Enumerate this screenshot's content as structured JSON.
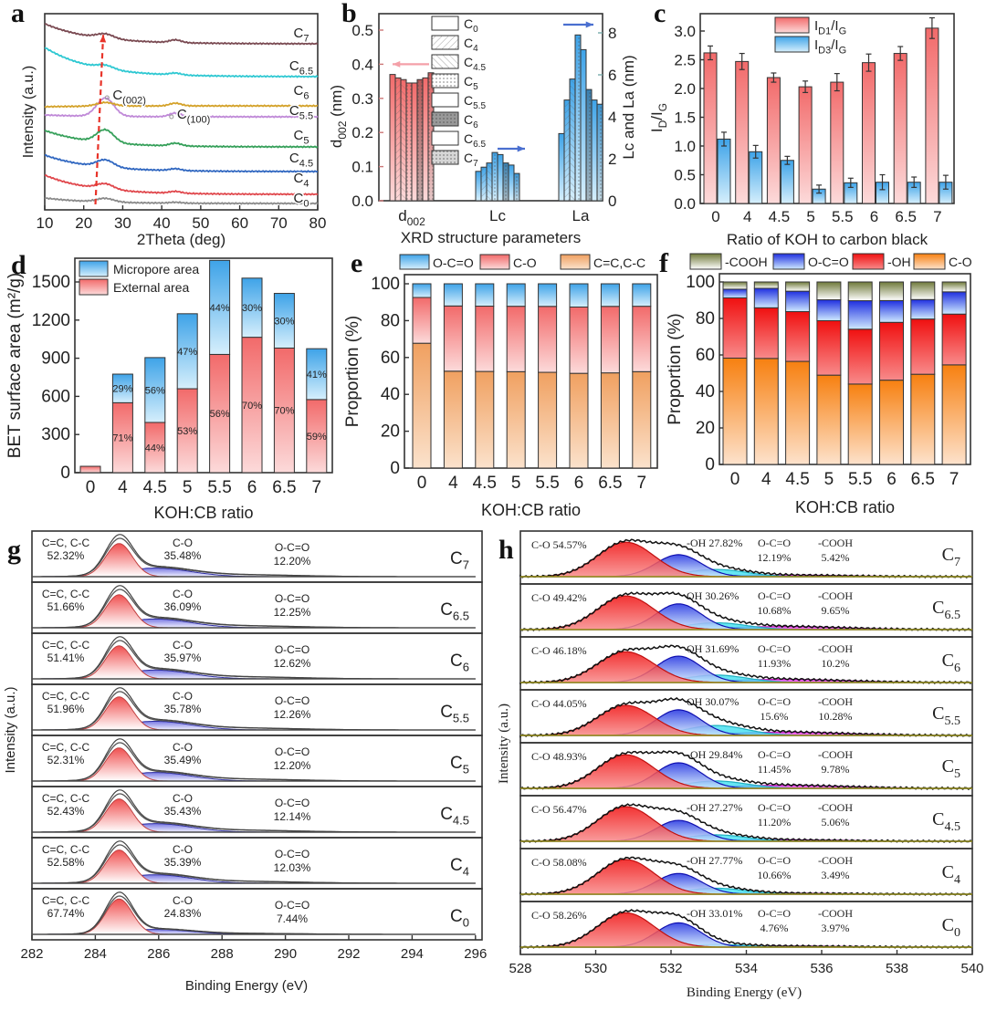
{
  "panel_labels": [
    "a",
    "b",
    "c",
    "d",
    "e",
    "f",
    "g",
    "h"
  ],
  "colors": {
    "red_bar": "#f26a6a",
    "blue_bar": "#3ea3e8",
    "orange_bar": "#f0a060",
    "cooh": "#707a3a",
    "oco_f": "#1f2fe0",
    "oh": "#f01010",
    "co_f": "#f78010",
    "arrow_red": "#e8342a",
    "arrow_blue": "#4a6fd0",
    "arrow_pink": "#f4a0a8"
  },
  "chart_data": [
    {
      "panel": "a",
      "type": "line",
      "xlabel": "2Theta (deg)",
      "ylabel": "Intensity (a.u.)",
      "xlim": [
        10,
        80
      ],
      "xticks": [
        10,
        20,
        30,
        40,
        50,
        60,
        70,
        80
      ],
      "series": [
        {
          "name": "C_{0}",
          "color": "#8a8a8a"
        },
        {
          "name": "C_{4}",
          "color": "#e0474c"
        },
        {
          "name": "C_{4.5}",
          "color": "#2f66c0"
        },
        {
          "name": "C_{5}",
          "color": "#36a05a"
        },
        {
          "name": "C_{5.5}",
          "color": "#c08ad8"
        },
        {
          "name": "C_{6}",
          "color": "#d4a22a"
        },
        {
          "name": "C_{6.5}",
          "color": "#2ec8d2"
        },
        {
          "name": "C_{7}",
          "color": "#7a4a52"
        }
      ],
      "annotations": [
        "C_{(002)}",
        "C_{(100)}"
      ]
    },
    {
      "panel": "b",
      "type": "bar",
      "categories": [
        "d_{002}",
        "Lc",
        "La"
      ],
      "xlabel": "XRD structure parameters",
      "ylabel_left": "d_{002} (nm)",
      "ylabel_right": "Lc and La (nm)",
      "ylim_left": [
        0,
        0.55
      ],
      "yticks_left": [
        "0.0",
        "0.1",
        "0.2",
        "0.3",
        "0.4",
        "0.5"
      ],
      "ylim_right": [
        0,
        8.8
      ],
      "yticks_right": [
        "0",
        "2",
        "4",
        "6",
        "8"
      ],
      "legend": [
        "C_{0}",
        "C_{4}",
        "C_{4.5}",
        "C_{5}",
        "C_{5.5}",
        "C_{6}",
        "C_{6.5}",
        "C_{7}"
      ],
      "values": {
        "d002": [
          0.37,
          0.36,
          0.355,
          0.345,
          0.345,
          0.355,
          0.36,
          0.375
        ],
        "Lc": [
          1.4,
          1.6,
          1.8,
          2.3,
          2.2,
          1.8,
          1.7,
          1.3
        ],
        "La": [
          3.2,
          4.8,
          5.8,
          7.9,
          7.2,
          5.3,
          4.8,
          4.6
        ]
      }
    },
    {
      "panel": "c",
      "type": "bar",
      "categories": [
        "0",
        "4",
        "4.5",
        "5",
        "5.5",
        "6",
        "6.5",
        "7"
      ],
      "xlabel": "Ratio of KOH to carbon black",
      "ylabel": "I_{D}/I_{G}",
      "ylim": [
        0,
        3.3
      ],
      "yticks": [
        "0.0",
        "0.5",
        "1.0",
        "1.5",
        "2.0",
        "2.5",
        "3.0"
      ],
      "legend_position": "top-center",
      "series": [
        {
          "name": "I_{D1}/I_{G}",
          "values": [
            2.62,
            2.47,
            2.19,
            2.03,
            2.11,
            2.45,
            2.61,
            3.05
          ],
          "errors": [
            0.12,
            0.14,
            0.08,
            0.1,
            0.15,
            0.15,
            0.12,
            0.18
          ]
        },
        {
          "name": "I_{D3}/I_{G}",
          "values": [
            1.12,
            0.9,
            0.75,
            0.25,
            0.36,
            0.37,
            0.37,
            0.37
          ],
          "errors": [
            0.12,
            0.11,
            0.07,
            0.07,
            0.08,
            0.13,
            0.09,
            0.12
          ]
        }
      ]
    },
    {
      "panel": "d",
      "type": "bar",
      "stacked": true,
      "categories": [
        "0",
        "4",
        "4.5",
        "5",
        "5.5",
        "6",
        "6.5",
        "7"
      ],
      "xlabel": "KOH:CB ratio",
      "ylabel": "BET surface area (m²/g)",
      "ylim": [
        0,
        1680
      ],
      "yticks": [
        "0",
        "300",
        "600",
        "900",
        "1200",
        "1500"
      ],
      "legend_position": "top-left",
      "series": [
        {
          "name": "External area",
          "values": [
            50,
            550,
            395,
            660,
            930,
            1065,
            980,
            575
          ],
          "labels": [
            "",
            "71%",
            "44%",
            "53%",
            "56%",
            "70%",
            "70%",
            "59%"
          ]
        },
        {
          "name": "Micropore area",
          "values": [
            0,
            225,
            510,
            590,
            740,
            465,
            430,
            400
          ],
          "labels": [
            "",
            "29%",
            "56%",
            "47%",
            "44%",
            "30%",
            "30%",
            "41%"
          ]
        }
      ]
    },
    {
      "panel": "e",
      "type": "bar",
      "stacked": true,
      "categories": [
        "0",
        "4",
        "4.5",
        "5",
        "5.5",
        "6",
        "6.5",
        "7"
      ],
      "xlabel": "KOH:CB ratio",
      "ylabel": "Proportion (%)",
      "ylim": [
        0,
        100
      ],
      "yticks": [
        "0",
        "20",
        "40",
        "60",
        "80",
        "100"
      ],
      "legend_position": "top",
      "series": [
        {
          "name": "O-C=O",
          "values": [
            7.44,
            12.03,
            12.14,
            12.2,
            12.26,
            12.62,
            12.25,
            12.2
          ]
        },
        {
          "name": "C-O",
          "values": [
            24.83,
            35.39,
            35.43,
            35.49,
            35.78,
            35.97,
            36.09,
            35.48
          ]
        },
        {
          "name": "C=C,C-C",
          "values": [
            67.74,
            52.58,
            52.43,
            52.31,
            51.96,
            51.41,
            51.66,
            52.32
          ]
        }
      ]
    },
    {
      "panel": "f",
      "type": "bar",
      "stacked": true,
      "categories": [
        "0",
        "4",
        "4.5",
        "5",
        "5.5",
        "6",
        "6.5",
        "7"
      ],
      "xlabel": "KOH:CB ratio",
      "ylabel": "Proportion (%)",
      "ylim": [
        0,
        100
      ],
      "yticks": [
        "0",
        "20",
        "40",
        "60",
        "80",
        "100"
      ],
      "legend_position": "top",
      "series": [
        {
          "name": "-COOH",
          "values": [
            3.97,
            3.49,
            5.06,
            9.78,
            10.28,
            10.2,
            9.65,
            5.42
          ]
        },
        {
          "name": "O-C=O",
          "values": [
            4.76,
            10.66,
            11.2,
            11.45,
            15.6,
            11.93,
            10.68,
            12.19
          ]
        },
        {
          "name": "-OH",
          "values": [
            33.01,
            27.77,
            27.27,
            29.84,
            30.07,
            31.69,
            30.26,
            27.82
          ]
        },
        {
          "name": "C-O",
          "values": [
            58.26,
            58.08,
            56.47,
            48.93,
            44.05,
            46.18,
            49.42,
            54.57
          ]
        }
      ]
    },
    {
      "panel": "g",
      "type": "line",
      "xlabel": "Binding Energy (eV)",
      "ylabel": "Intensity (a.u.)",
      "xlim": [
        282,
        296
      ],
      "xticks": [
        "282",
        "284",
        "286",
        "288",
        "290",
        "292",
        "294",
        "296"
      ],
      "peak_names": {
        "cc": "C=C, C-C",
        "co": "C-O",
        "oco": "O-C=O"
      },
      "spectra": [
        {
          "sample": "C_{7}",
          "cc": "52.32%",
          "co": "35.48%",
          "oco": "12.20%"
        },
        {
          "sample": "C_{6.5}",
          "cc": "51.66%",
          "co": "36.09%",
          "oco": "12.25%"
        },
        {
          "sample": "C_{6}",
          "cc": "51.41%",
          "co": "35.97%",
          "oco": "12.62%"
        },
        {
          "sample": "C_{5.5}",
          "cc": "51.96%",
          "co": "35.78%",
          "oco": "12.26%"
        },
        {
          "sample": "C_{5}",
          "cc": "52.31%",
          "co": "35.49%",
          "oco": "12.20%"
        },
        {
          "sample": "C_{4.5}",
          "cc": "52.43%",
          "co": "35.43%",
          "oco": "12.14%"
        },
        {
          "sample": "C_{4}",
          "cc": "52.58%",
          "co": "35.39%",
          "oco": "12.03%"
        },
        {
          "sample": "C_{0}",
          "cc": "67.74%",
          "co": "24.83%",
          "oco": "7.44%"
        }
      ]
    },
    {
      "panel": "h",
      "type": "line",
      "xlabel": "Binding Energy (eV)",
      "ylabel": "Intensity (a.u.)",
      "xlim": [
        528,
        540
      ],
      "xticks": [
        "528",
        "530",
        "532",
        "534",
        "536",
        "538",
        "540"
      ],
      "peak_names": {
        "oco": "O-C=O",
        "cooh": "-COOH"
      },
      "spectra": [
        {
          "sample": "C_{7}",
          "co": "C-O 54.57%",
          "oh": "-OH 27.82%",
          "oco": "12.19%",
          "cooh": "5.42%"
        },
        {
          "sample": "C_{6.5}",
          "co": "C-O 49.42%",
          "oh": "OH 30.26%",
          "oco": "10.68%",
          "cooh": "9.65%"
        },
        {
          "sample": "C_{6}",
          "co": "C-O 46.18%",
          "oh": "OH 31.69%",
          "oco": "11.93%",
          "cooh": "10.2%"
        },
        {
          "sample": "C_{5.5}",
          "co": "C-O 44.05%",
          "oh": "OH 30.07%",
          "oco": "15.6%",
          "cooh": "10.28%"
        },
        {
          "sample": "C_{5}",
          "co": "C-O 48.93%",
          "oh": "-OH 29.84%",
          "oco": "11.45%",
          "cooh": "9.78%"
        },
        {
          "sample": "C_{4.5}",
          "co": "C-O 56.47%",
          "oh": "-OH 27.27%",
          "oco": "11.20%",
          "cooh": "5.06%"
        },
        {
          "sample": "C_{4}",
          "co": "C-O 58.08%",
          "oh": "-OH 27.77%",
          "oco": "10.66%",
          "cooh": "3.49%"
        },
        {
          "sample": "C_{0}",
          "co": "C-O 58.26%",
          "oh": "-OH  33.01%",
          "oco": "4.76%",
          "cooh": "3.97%"
        }
      ]
    }
  ]
}
